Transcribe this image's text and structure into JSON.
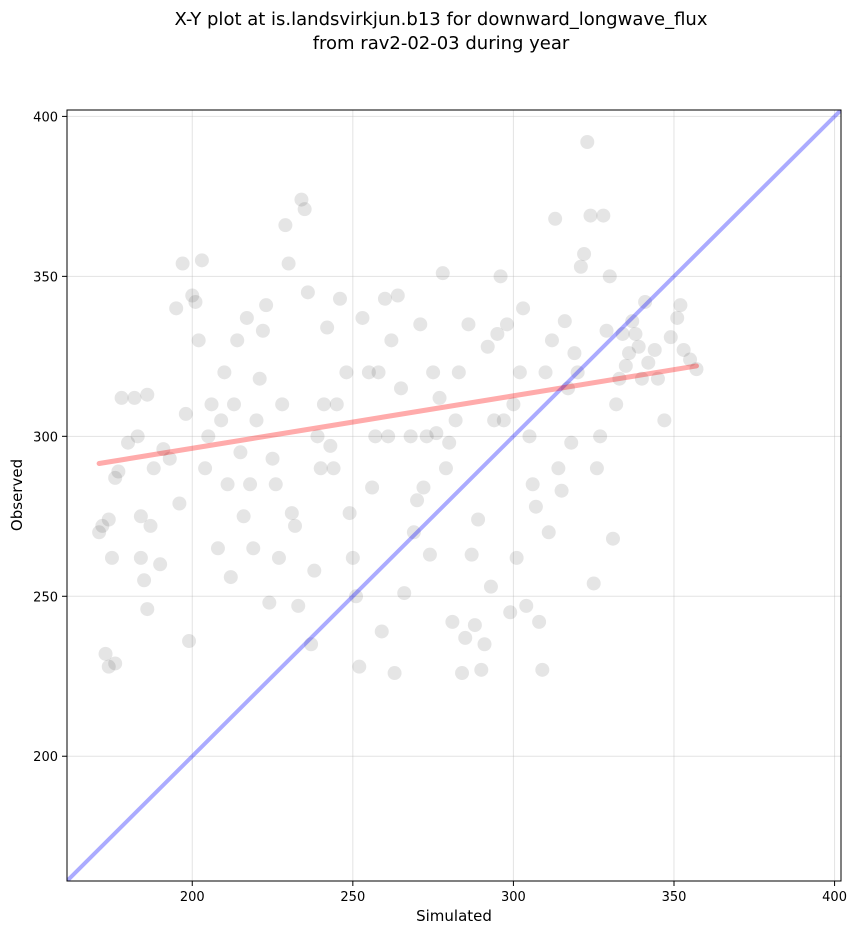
{
  "chart_data": {
    "type": "scatter",
    "title": "X-Y plot at is.landsvirkjun.b13 for downward_longwave_flux",
    "subtitle": "from rav2-02-03 during year",
    "xlabel": "Simulated",
    "ylabel": "Observed",
    "xlim": [
      161,
      402
    ],
    "ylim": [
      161,
      402
    ],
    "x_ticks": [
      200,
      250,
      300,
      350,
      400
    ],
    "y_ticks": [
      200,
      250,
      300,
      350,
      400
    ],
    "grid": true,
    "legend": "none",
    "identity_line": {
      "x": [
        161,
        402
      ],
      "y": [
        161,
        402
      ],
      "color": "#0000ff"
    },
    "fit_line": {
      "x": [
        171,
        357
      ],
      "y": [
        291.5,
        322
      ],
      "color": "#ff0000"
    },
    "point_color": "#000000",
    "points": [
      [
        171,
        270
      ],
      [
        172,
        272
      ],
      [
        173,
        232
      ],
      [
        174,
        274
      ],
      [
        174,
        228
      ],
      [
        175,
        262
      ],
      [
        176,
        229
      ],
      [
        176,
        287
      ],
      [
        177,
        289
      ],
      [
        178,
        312
      ],
      [
        180,
        298
      ],
      [
        182,
        312
      ],
      [
        183,
        300
      ],
      [
        184,
        275
      ],
      [
        184,
        262
      ],
      [
        185,
        255
      ],
      [
        186,
        313
      ],
      [
        186,
        246
      ],
      [
        187,
        272
      ],
      [
        188,
        290
      ],
      [
        190,
        260
      ],
      [
        191,
        296
      ],
      [
        193,
        293
      ],
      [
        195,
        340
      ],
      [
        196,
        279
      ],
      [
        197,
        354
      ],
      [
        198,
        307
      ],
      [
        199,
        236
      ],
      [
        200,
        344
      ],
      [
        201,
        342
      ],
      [
        202,
        330
      ],
      [
        203,
        355
      ],
      [
        204,
        290
      ],
      [
        205,
        300
      ],
      [
        206,
        310
      ],
      [
        208,
        265
      ],
      [
        209,
        305
      ],
      [
        210,
        320
      ],
      [
        211,
        285
      ],
      [
        212,
        256
      ],
      [
        213,
        310
      ],
      [
        214,
        330
      ],
      [
        215,
        295
      ],
      [
        216,
        275
      ],
      [
        217,
        337
      ],
      [
        218,
        285
      ],
      [
        219,
        265
      ],
      [
        220,
        305
      ],
      [
        221,
        318
      ],
      [
        222,
        333
      ],
      [
        223,
        341
      ],
      [
        224,
        248
      ],
      [
        225,
        293
      ],
      [
        226,
        285
      ],
      [
        227,
        262
      ],
      [
        228,
        310
      ],
      [
        229,
        366
      ],
      [
        230,
        354
      ],
      [
        231,
        276
      ],
      [
        232,
        272
      ],
      [
        233,
        247
      ],
      [
        234,
        374
      ],
      [
        235,
        371
      ],
      [
        236,
        345
      ],
      [
        237,
        235
      ],
      [
        238,
        258
      ],
      [
        239,
        300
      ],
      [
        240,
        290
      ],
      [
        241,
        310
      ],
      [
        242,
        334
      ],
      [
        243,
        297
      ],
      [
        244,
        290
      ],
      [
        245,
        310
      ],
      [
        246,
        343
      ],
      [
        248,
        320
      ],
      [
        249,
        276
      ],
      [
        250,
        262
      ],
      [
        251,
        250
      ],
      [
        252,
        228
      ],
      [
        253,
        337
      ],
      [
        255,
        320
      ],
      [
        256,
        284
      ],
      [
        257,
        300
      ],
      [
        258,
        320
      ],
      [
        259,
        239
      ],
      [
        260,
        343
      ],
      [
        261,
        300
      ],
      [
        262,
        330
      ],
      [
        263,
        226
      ],
      [
        264,
        344
      ],
      [
        265,
        315
      ],
      [
        266,
        251
      ],
      [
        268,
        300
      ],
      [
        269,
        270
      ],
      [
        270,
        280
      ],
      [
        271,
        335
      ],
      [
        272,
        284
      ],
      [
        273,
        300
      ],
      [
        274,
        263
      ],
      [
        275,
        320
      ],
      [
        276,
        301
      ],
      [
        277,
        312
      ],
      [
        278,
        351
      ],
      [
        279,
        290
      ],
      [
        280,
        298
      ],
      [
        281,
        242
      ],
      [
        282,
        305
      ],
      [
        283,
        320
      ],
      [
        284,
        226
      ],
      [
        285,
        237
      ],
      [
        286,
        335
      ],
      [
        287,
        263
      ],
      [
        288,
        241
      ],
      [
        289,
        274
      ],
      [
        290,
        227
      ],
      [
        291,
        235
      ],
      [
        292,
        328
      ],
      [
        293,
        253
      ],
      [
        294,
        305
      ],
      [
        295,
        332
      ],
      [
        296,
        350
      ],
      [
        297,
        305
      ],
      [
        298,
        335
      ],
      [
        299,
        245
      ],
      [
        300,
        310
      ],
      [
        301,
        262
      ],
      [
        302,
        320
      ],
      [
        303,
        340
      ],
      [
        304,
        247
      ],
      [
        305,
        300
      ],
      [
        306,
        285
      ],
      [
        307,
        278
      ],
      [
        308,
        242
      ],
      [
        309,
        227
      ],
      [
        310,
        320
      ],
      [
        311,
        270
      ],
      [
        312,
        330
      ],
      [
        313,
        368
      ],
      [
        314,
        290
      ],
      [
        315,
        283
      ],
      [
        316,
        336
      ],
      [
        317,
        315
      ],
      [
        318,
        298
      ],
      [
        319,
        326
      ],
      [
        320,
        320
      ],
      [
        321,
        353
      ],
      [
        322,
        357
      ],
      [
        323,
        392
      ],
      [
        324,
        369
      ],
      [
        325,
        254
      ],
      [
        326,
        290
      ],
      [
        327,
        300
      ],
      [
        328,
        369
      ],
      [
        329,
        333
      ],
      [
        330,
        350
      ],
      [
        331,
        268
      ],
      [
        332,
        310
      ],
      [
        333,
        318
      ],
      [
        334,
        332
      ],
      [
        335,
        322
      ],
      [
        336,
        326
      ],
      [
        337,
        336
      ],
      [
        338,
        332
      ],
      [
        339,
        328
      ],
      [
        340,
        318
      ],
      [
        341,
        342
      ],
      [
        342,
        323
      ],
      [
        344,
        327
      ],
      [
        345,
        318
      ],
      [
        347,
        305
      ],
      [
        349,
        331
      ],
      [
        351,
        337
      ],
      [
        352,
        341
      ],
      [
        353,
        327
      ],
      [
        355,
        324
      ],
      [
        357,
        321
      ]
    ]
  }
}
